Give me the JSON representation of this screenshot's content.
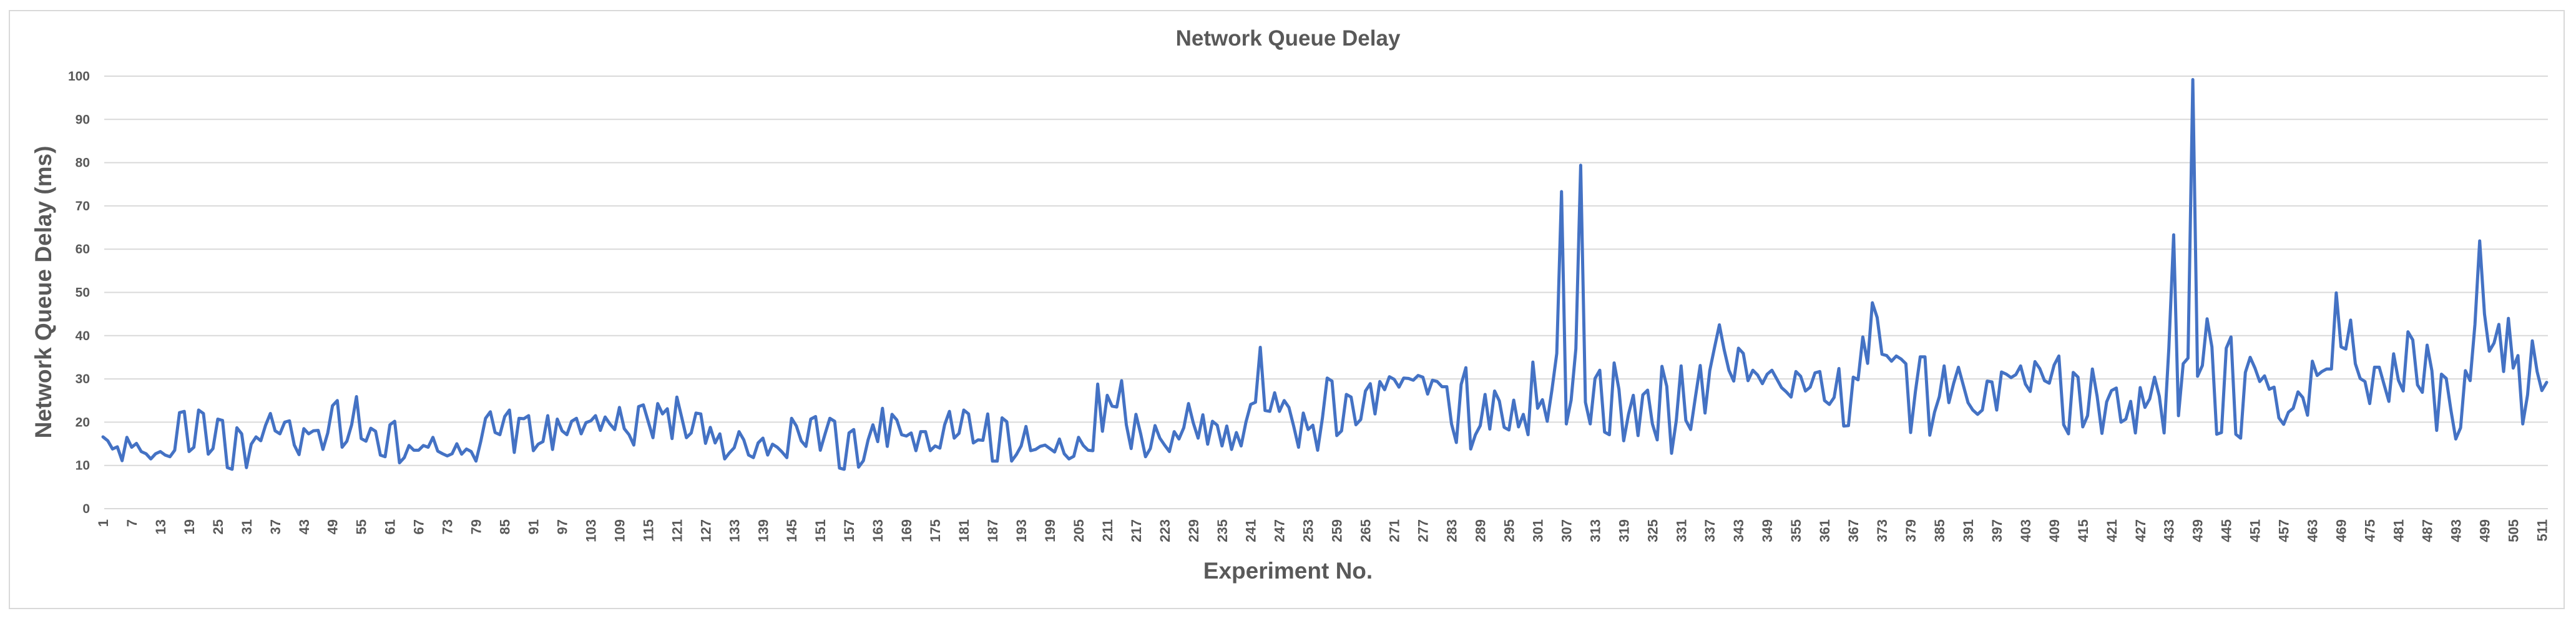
{
  "chart_data": {
    "type": "line",
    "title": "Network Queue Delay",
    "xlabel": "Experiment No.",
    "ylabel": "Network Queue Delay  (ms)",
    "ylim": [
      0,
      100
    ],
    "yticks": [
      0,
      10,
      20,
      30,
      40,
      50,
      60,
      70,
      80,
      90,
      100
    ],
    "grid": true,
    "legend": null,
    "x_tick_step": 6,
    "x_range": [
      1,
      512
    ],
    "series": [
      {
        "name": "Network Queue Delay",
        "color": "#4472c4",
        "values": [
          16.6,
          15.7,
          13.8,
          14.3,
          11.1,
          16.5,
          14.2,
          15.1,
          13.2,
          12.7,
          11.5,
          12.7,
          13.2,
          12.4,
          12.0,
          13.5,
          22.2,
          22.5,
          13.2,
          14.2,
          22.8,
          22.0,
          12.6,
          13.9,
          20.7,
          20.4,
          9.5,
          9.1,
          18.7,
          17.3,
          9.5,
          14.9,
          16.6,
          15.7,
          19.3,
          22.0,
          18.0,
          17.3,
          20.0,
          20.3,
          14.7,
          12.5,
          18.5,
          17.3,
          18.0,
          18.1,
          13.7,
          17.5,
          23.8,
          25.0,
          14.2,
          15.6,
          19.4,
          25.9,
          16.2,
          15.6,
          18.6,
          17.9,
          12.4,
          12.0,
          19.4,
          20.2,
          10.6,
          11.8,
          14.6,
          13.5,
          13.5,
          14.6,
          14.2,
          16.5,
          13.3,
          12.7,
          12.2,
          12.7,
          15.0,
          12.6,
          13.8,
          13.2,
          11.0,
          15.6,
          20.9,
          22.4,
          17.6,
          17.1,
          21.3,
          22.8,
          13.0,
          20.9,
          20.8,
          21.5,
          13.4,
          14.9,
          15.5,
          21.5,
          13.7,
          20.7,
          18.0,
          17.1,
          20.2,
          20.9,
          17.3,
          19.9,
          20.3,
          21.5,
          18.1,
          21.2,
          19.6,
          18.3,
          23.4,
          18.5,
          17.1,
          14.7,
          23.6,
          24.0,
          20.2,
          16.4,
          24.3,
          21.9,
          23.1,
          16.2,
          25.8,
          21.2,
          16.4,
          17.5,
          22.1,
          21.9,
          15.1,
          18.8,
          15.2,
          17.3,
          11.5,
          12.9,
          14.1,
          17.8,
          15.9,
          12.4,
          11.8,
          15.2,
          16.3,
          12.4,
          14.9,
          14.2,
          13.1,
          11.8,
          20.9,
          19.1,
          15.7,
          14.4,
          20.7,
          21.3,
          13.5,
          17.3,
          20.9,
          20.2,
          9.4,
          9.1,
          17.5,
          18.3,
          9.6,
          11.1,
          15.9,
          19.4,
          15.5,
          23.2,
          14.4,
          21.8,
          20.5,
          17.1,
          16.8,
          17.5,
          13.4,
          17.8,
          17.8,
          13.4,
          14.5,
          14.0,
          19.4,
          22.5,
          16.3,
          17.4,
          22.8,
          21.9,
          15.2,
          15.9,
          15.8,
          21.9,
          11.0,
          11.0,
          21.0,
          20.1,
          11.0,
          12.5,
          14.5,
          19.0,
          13.4,
          13.7,
          14.4,
          14.7,
          13.9,
          13.1,
          16.1,
          12.7,
          11.5,
          12.1,
          16.5,
          14.6,
          13.5,
          13.4,
          28.8,
          17.9,
          26.2,
          23.7,
          23.5,
          29.6,
          19.4,
          13.9,
          21.8,
          17.3,
          12.0,
          13.9,
          19.2,
          16.3,
          14.7,
          13.2,
          17.8,
          16.1,
          18.7,
          24.3,
          19.8,
          16.3,
          21.7,
          14.9,
          20.2,
          19.3,
          14.5,
          19.1,
          13.7,
          17.6,
          14.5,
          20.0,
          24.1,
          24.6,
          37.3,
          22.7,
          22.5,
          26.8,
          22.5,
          25.0,
          23.4,
          19.0,
          14.2,
          22.1,
          18.3,
          19.3,
          13.5,
          21.0,
          30.2,
          29.5,
          16.9,
          18.0,
          26.4,
          25.8,
          19.4,
          20.6,
          27.2,
          28.9,
          21.9,
          29.4,
          27.5,
          30.5,
          29.9,
          28.1,
          30.2,
          30.1,
          29.7,
          30.8,
          30.4,
          26.5,
          29.7,
          29.4,
          28.2,
          28.2,
          19.6,
          15.3,
          28.7,
          32.6,
          13.8,
          17.1,
          19.2,
          26.4,
          18.4,
          27.2,
          24.9,
          18.8,
          18.2,
          25.1,
          18.9,
          21.8,
          17.1,
          33.9,
          23.2,
          25.2,
          20.2,
          27.5,
          35.9,
          73.3,
          19.6,
          25.1,
          37.0,
          79.4,
          24.6,
          19.6,
          30.1,
          32.0,
          17.7,
          17.1,
          33.7,
          27.6,
          15.7,
          21.8,
          26.2,
          16.9,
          26.3,
          27.4,
          19.6,
          15.9,
          32.9,
          28.3,
          12.8,
          20.4,
          33.0,
          20.4,
          18.3,
          25.9,
          33.1,
          22.1,
          31.9,
          37.3,
          42.5,
          36.8,
          32.0,
          29.5,
          37.1,
          35.9,
          29.6,
          32.0,
          30.9,
          28.9,
          31.1,
          32.0,
          30.0,
          28.0,
          27.0,
          25.8,
          31.7,
          30.6,
          27.2,
          28.1,
          31.4,
          31.7,
          25.0,
          24.1,
          25.7,
          32.4,
          19.1,
          19.2,
          30.4,
          29.8,
          39.7,
          33.6,
          47.6,
          44.2,
          35.7,
          35.4,
          34.1,
          35.3,
          34.6,
          33.5,
          17.6,
          27.1,
          35.1,
          35.1,
          17.0,
          22.3,
          25.9,
          33.0,
          24.5,
          29.0,
          32.7,
          28.6,
          24.5,
          22.8,
          21.8,
          22.8,
          29.5,
          29.3,
          22.8,
          31.6,
          31.1,
          30.3,
          31.0,
          33.0,
          28.8,
          27.1,
          34.0,
          32.4,
          29.6,
          29.0,
          33.2,
          35.3,
          19.4,
          17.3,
          31.5,
          30.4,
          18.9,
          21.5,
          32.3,
          26.0,
          17.4,
          24.7,
          27.3,
          27.9,
          20.0,
          20.7,
          24.8,
          17.5,
          28.0,
          23.4,
          25.4,
          30.4,
          26.0,
          17.5,
          37.1,
          63.3,
          21.5,
          33.5,
          34.8,
          99.2,
          30.6,
          33.1,
          43.9,
          37.4,
          17.2,
          17.6,
          37.1,
          39.7,
          17.2,
          16.3,
          31.5,
          35.0,
          32.5,
          29.4,
          30.7,
          27.6,
          28.1,
          21.0,
          19.5,
          22.3,
          23.2,
          27.0,
          25.7,
          21.6,
          34.1,
          30.8,
          31.7,
          32.3,
          32.3,
          49.9,
          37.4,
          36.9,
          43.6,
          33.5,
          30.1,
          29.4,
          24.3,
          32.7,
          32.7,
          28.7,
          24.8,
          35.8,
          29.7,
          27.2,
          40.9,
          39.0,
          28.6,
          26.9,
          37.8,
          31.9,
          18.1,
          31.1,
          30.1,
          22.6,
          16.1,
          18.7,
          31.9,
          29.6,
          42.6,
          61.9,
          45.0,
          36.4,
          38.3,
          42.6,
          31.7,
          44.0,
          32.5,
          35.4,
          19.6,
          26.3,
          38.8,
          31.7,
          27.3,
          29.2
        ]
      }
    ]
  },
  "colors": {
    "line": "#4472c4",
    "grid": "#d9d9d9",
    "text": "#595959",
    "border": "#d9d9d9"
  }
}
